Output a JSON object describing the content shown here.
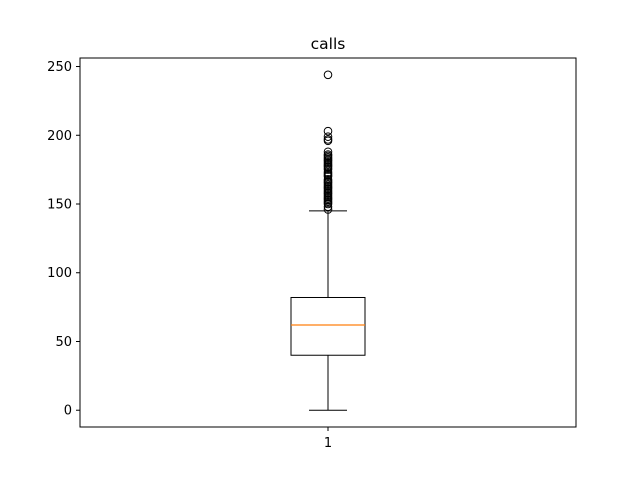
{
  "chart_data": {
    "type": "boxplot",
    "title": "calls",
    "xlabel": "",
    "ylabel": "",
    "categories": [
      "1"
    ],
    "ylim": [
      -12.2,
      256.2
    ],
    "yticks": [
      0,
      50,
      100,
      150,
      200,
      250
    ],
    "yticklabels": [
      "0",
      "50",
      "100",
      "150",
      "200",
      "250"
    ],
    "xticklabels": [
      "1"
    ],
    "grid": false,
    "boxes": [
      {
        "label": "1",
        "whisker_low": 0,
        "q1": 40,
        "median": 62,
        "q3": 82,
        "whisker_high": 145,
        "outliers": [
          146,
          148,
          150,
          151,
          152,
          153,
          154,
          155,
          156,
          157,
          158,
          159,
          160,
          161,
          162,
          163,
          164,
          165,
          166,
          167,
          168,
          170,
          171,
          172,
          173,
          175,
          176,
          177,
          178,
          179,
          180,
          181,
          182,
          183,
          184,
          185,
          186,
          188,
          196,
          197,
          199,
          203,
          244
        ]
      }
    ],
    "colors": {
      "box": "#000000",
      "median": "#ff7f0e",
      "whisker": "#000000",
      "flier": "#000000"
    }
  }
}
